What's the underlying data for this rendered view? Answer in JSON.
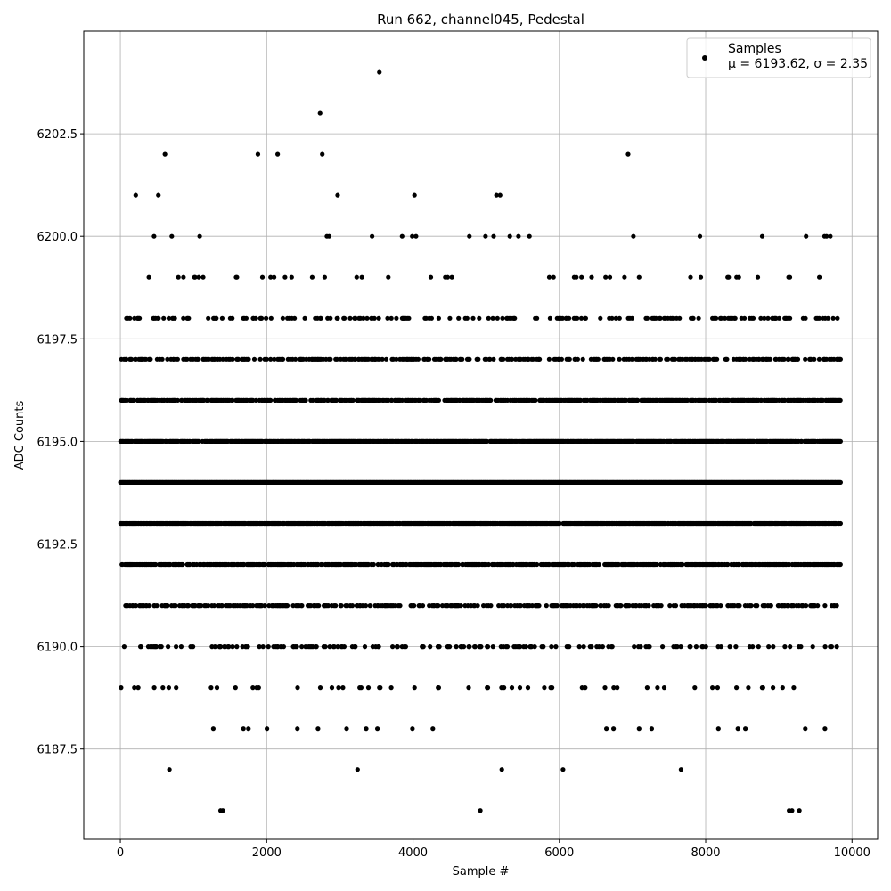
{
  "chart_data": {
    "type": "scatter",
    "title": "Run 662, channel045, Pedestal",
    "xlabel": "Sample #",
    "ylabel": "ADC Counts",
    "xlim": [
      -500,
      10350
    ],
    "ylim": [
      6185.3,
      6205.0
    ],
    "xticks": [
      0,
      2000,
      4000,
      6000,
      8000,
      10000
    ],
    "xtick_labels": [
      "0",
      "2000",
      "4000",
      "6000",
      "8000",
      "10000"
    ],
    "yticks": [
      6187.5,
      6190.0,
      6192.5,
      6195.0,
      6197.5,
      6200.0,
      6202.5
    ],
    "ytick_labels": [
      "6187.5",
      "6190.0",
      "6192.5",
      "6195.0",
      "6197.5",
      "6200.0",
      "6202.5"
    ],
    "grid": true,
    "legend_position": "top-right",
    "legend": {
      "label": "Samples",
      "stats_prefix": "μ = 6193.62, ",
      "stats_sigma": "σ = 2.35"
    },
    "series_color": "#000000",
    "x_range": [
      0,
      9840
    ],
    "level_density": [
      {
        "y": 6186,
        "weight": 0.0008
      },
      {
        "y": 6187,
        "weight": 0.006
      },
      {
        "y": 6188,
        "weight": 0.02
      },
      {
        "y": 6189,
        "weight": 0.05
      },
      {
        "y": 6190,
        "weight": 0.16
      },
      {
        "y": 6191,
        "weight": 0.35
      },
      {
        "y": 6192,
        "weight": 0.6
      },
      {
        "y": 6193,
        "weight": 0.85
      },
      {
        "y": 6194,
        "weight": 1.0
      },
      {
        "y": 6195,
        "weight": 0.85
      },
      {
        "y": 6196,
        "weight": 0.6
      },
      {
        "y": 6197,
        "weight": 0.35
      },
      {
        "y": 6198,
        "weight": 0.16
      },
      {
        "y": 6199,
        "weight": 0.05
      },
      {
        "y": 6200,
        "weight": 0.02
      }
    ],
    "outliers": [
      {
        "x": 3540,
        "y": 6204
      },
      {
        "x": 2730,
        "y": 6203
      },
      {
        "x": 610,
        "y": 6202
      },
      {
        "x": 1880,
        "y": 6202
      },
      {
        "x": 2150,
        "y": 6202
      },
      {
        "x": 2760,
        "y": 6202
      },
      {
        "x": 6940,
        "y": 6202
      },
      {
        "x": 210,
        "y": 6201
      },
      {
        "x": 520,
        "y": 6201
      },
      {
        "x": 2970,
        "y": 6201
      },
      {
        "x": 4020,
        "y": 6201
      },
      {
        "x": 5140,
        "y": 6201
      },
      {
        "x": 5190,
        "y": 6201
      },
      {
        "x": 1370,
        "y": 6186
      },
      {
        "x": 1400,
        "y": 6186
      },
      {
        "x": 4920,
        "y": 6186
      },
      {
        "x": 9140,
        "y": 6186
      },
      {
        "x": 9180,
        "y": 6186
      },
      {
        "x": 9280,
        "y": 6186
      }
    ]
  }
}
